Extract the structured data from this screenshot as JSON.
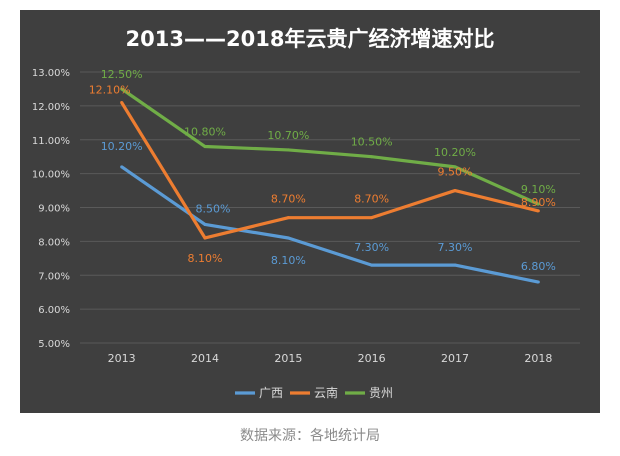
{
  "chart_data": {
    "type": "line",
    "title": "2013——2018年云贵广经济增速对比",
    "xlabel": "",
    "ylabel": "",
    "categories": [
      "2013",
      "2014",
      "2015",
      "2016",
      "2017",
      "2018"
    ],
    "ylim": [
      5.0,
      13.0
    ],
    "y_ticks": [
      "13.00%",
      "12.00%",
      "11.00%",
      "10.00%",
      "9.00%",
      "8.00%",
      "7.00%",
      "6.00%",
      "5.00%"
    ],
    "grid": true,
    "legend_position": "bottom",
    "series": [
      {
        "name": "广西",
        "color": "#5b9bd5",
        "values": [
          10.2,
          8.5,
          8.1,
          7.3,
          7.3,
          6.8
        ],
        "labels": [
          "10.20%",
          "8.50%",
          "8.10%",
          "7.30%",
          "7.30%",
          "6.80%"
        ]
      },
      {
        "name": "云南",
        "color": "#ed7d31",
        "values": [
          12.1,
          8.1,
          8.7,
          8.7,
          9.5,
          8.9
        ],
        "labels": [
          "12.10%",
          "8.10%",
          "8.70%",
          "8.70%",
          "9.50%",
          "8.90%"
        ]
      },
      {
        "name": "贵州",
        "color": "#70ad47",
        "values": [
          12.5,
          10.8,
          10.7,
          10.5,
          10.2,
          9.1
        ],
        "labels": [
          "12.50%",
          "10.80%",
          "10.70%",
          "10.50%",
          "10.20%",
          "9.10%"
        ]
      }
    ]
  },
  "source_note": "数据来源：各地统计局"
}
